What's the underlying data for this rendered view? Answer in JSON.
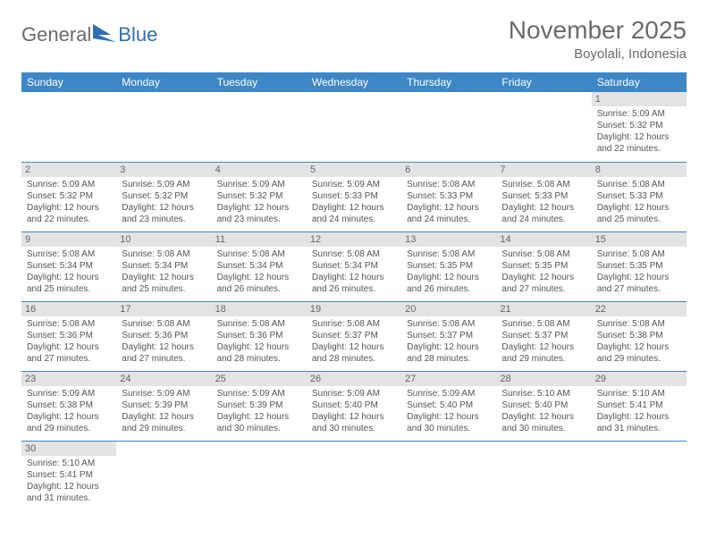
{
  "logo": {
    "text1": "General",
    "text2": "Blue"
  },
  "title": "November 2025",
  "location": "Boyolali, Indonesia",
  "colors": {
    "header_bg": "#3d87c7",
    "header_fg": "#ffffff",
    "daynum_bg": "#e3e3e3",
    "row_border": "#3d87c7",
    "text": "#555555",
    "title": "#6a6a6a"
  },
  "day_headers": [
    "Sunday",
    "Monday",
    "Tuesday",
    "Wednesday",
    "Thursday",
    "Friday",
    "Saturday"
  ],
  "weeks": [
    [
      null,
      null,
      null,
      null,
      null,
      null,
      {
        "n": "1",
        "sr": "5:09 AM",
        "ss": "5:32 PM",
        "dl": "12 hours and 22 minutes."
      }
    ],
    [
      {
        "n": "2",
        "sr": "5:09 AM",
        "ss": "5:32 PM",
        "dl": "12 hours and 22 minutes."
      },
      {
        "n": "3",
        "sr": "5:09 AM",
        "ss": "5:32 PM",
        "dl": "12 hours and 23 minutes."
      },
      {
        "n": "4",
        "sr": "5:09 AM",
        "ss": "5:32 PM",
        "dl": "12 hours and 23 minutes."
      },
      {
        "n": "5",
        "sr": "5:09 AM",
        "ss": "5:33 PM",
        "dl": "12 hours and 24 minutes."
      },
      {
        "n": "6",
        "sr": "5:08 AM",
        "ss": "5:33 PM",
        "dl": "12 hours and 24 minutes."
      },
      {
        "n": "7",
        "sr": "5:08 AM",
        "ss": "5:33 PM",
        "dl": "12 hours and 24 minutes."
      },
      {
        "n": "8",
        "sr": "5:08 AM",
        "ss": "5:33 PM",
        "dl": "12 hours and 25 minutes."
      }
    ],
    [
      {
        "n": "9",
        "sr": "5:08 AM",
        "ss": "5:34 PM",
        "dl": "12 hours and 25 minutes."
      },
      {
        "n": "10",
        "sr": "5:08 AM",
        "ss": "5:34 PM",
        "dl": "12 hours and 25 minutes."
      },
      {
        "n": "11",
        "sr": "5:08 AM",
        "ss": "5:34 PM",
        "dl": "12 hours and 26 minutes."
      },
      {
        "n": "12",
        "sr": "5:08 AM",
        "ss": "5:34 PM",
        "dl": "12 hours and 26 minutes."
      },
      {
        "n": "13",
        "sr": "5:08 AM",
        "ss": "5:35 PM",
        "dl": "12 hours and 26 minutes."
      },
      {
        "n": "14",
        "sr": "5:08 AM",
        "ss": "5:35 PM",
        "dl": "12 hours and 27 minutes."
      },
      {
        "n": "15",
        "sr": "5:08 AM",
        "ss": "5:35 PM",
        "dl": "12 hours and 27 minutes."
      }
    ],
    [
      {
        "n": "16",
        "sr": "5:08 AM",
        "ss": "5:36 PM",
        "dl": "12 hours and 27 minutes."
      },
      {
        "n": "17",
        "sr": "5:08 AM",
        "ss": "5:36 PM",
        "dl": "12 hours and 27 minutes."
      },
      {
        "n": "18",
        "sr": "5:08 AM",
        "ss": "5:36 PM",
        "dl": "12 hours and 28 minutes."
      },
      {
        "n": "19",
        "sr": "5:08 AM",
        "ss": "5:37 PM",
        "dl": "12 hours and 28 minutes."
      },
      {
        "n": "20",
        "sr": "5:08 AM",
        "ss": "5:37 PM",
        "dl": "12 hours and 28 minutes."
      },
      {
        "n": "21",
        "sr": "5:08 AM",
        "ss": "5:37 PM",
        "dl": "12 hours and 29 minutes."
      },
      {
        "n": "22",
        "sr": "5:08 AM",
        "ss": "5:38 PM",
        "dl": "12 hours and 29 minutes."
      }
    ],
    [
      {
        "n": "23",
        "sr": "5:09 AM",
        "ss": "5:38 PM",
        "dl": "12 hours and 29 minutes."
      },
      {
        "n": "24",
        "sr": "5:09 AM",
        "ss": "5:39 PM",
        "dl": "12 hours and 29 minutes."
      },
      {
        "n": "25",
        "sr": "5:09 AM",
        "ss": "5:39 PM",
        "dl": "12 hours and 30 minutes."
      },
      {
        "n": "26",
        "sr": "5:09 AM",
        "ss": "5:40 PM",
        "dl": "12 hours and 30 minutes."
      },
      {
        "n": "27",
        "sr": "5:09 AM",
        "ss": "5:40 PM",
        "dl": "12 hours and 30 minutes."
      },
      {
        "n": "28",
        "sr": "5:10 AM",
        "ss": "5:40 PM",
        "dl": "12 hours and 30 minutes."
      },
      {
        "n": "29",
        "sr": "5:10 AM",
        "ss": "5:41 PM",
        "dl": "12 hours and 31 minutes."
      }
    ],
    [
      {
        "n": "30",
        "sr": "5:10 AM",
        "ss": "5:41 PM",
        "dl": "12 hours and 31 minutes."
      },
      null,
      null,
      null,
      null,
      null,
      null
    ]
  ],
  "labels": {
    "sunrise": "Sunrise: ",
    "sunset": "Sunset: ",
    "daylight": "Daylight: "
  }
}
